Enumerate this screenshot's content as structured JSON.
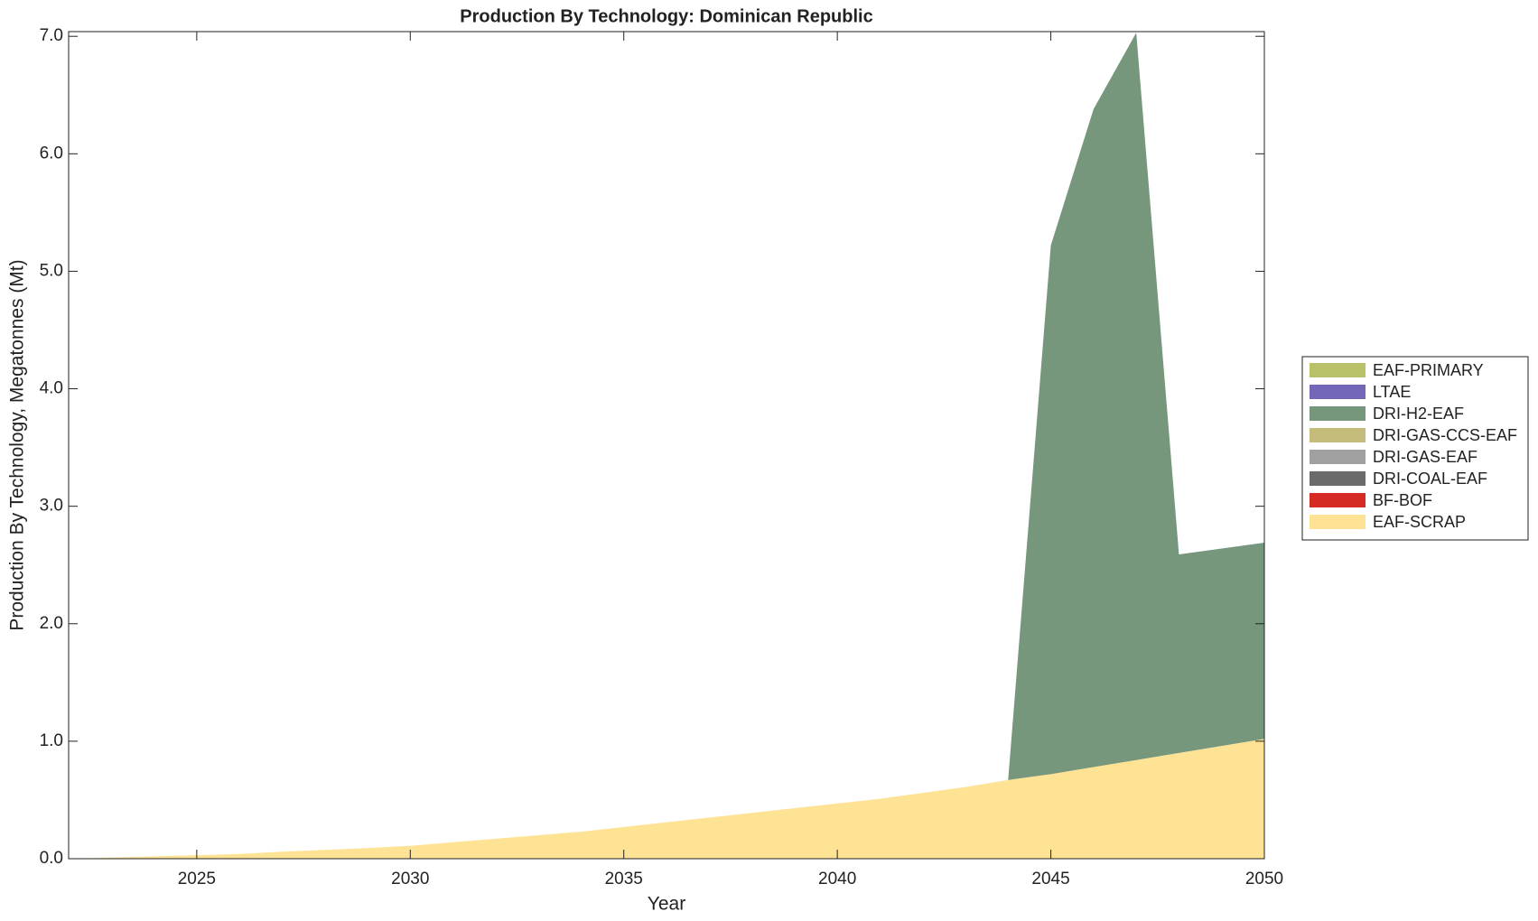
{
  "chart_data": {
    "type": "stacked-area",
    "title": "Production By Technology: Dominican Republic",
    "xlabel": "Year",
    "ylabel": "Production By Technology, Megatonnes (Mt)",
    "x": [
      2022,
      2023,
      2024,
      2025,
      2026,
      2027,
      2028,
      2029,
      2030,
      2031,
      2032,
      2033,
      2034,
      2035,
      2036,
      2037,
      2038,
      2039,
      2040,
      2041,
      2042,
      2043,
      2044,
      2045,
      2046,
      2047,
      2048,
      2049,
      2050
    ],
    "xlim": [
      2022,
      2050
    ],
    "xticks": [
      2025,
      2030,
      2035,
      2040,
      2045,
      2050
    ],
    "ylim": [
      0,
      7.04
    ],
    "yticks": [
      {
        "value": 0,
        "label": "0.0"
      },
      {
        "value": 1,
        "label": "1.0"
      },
      {
        "value": 2,
        "label": "2.0"
      },
      {
        "value": 3,
        "label": "3.0"
      },
      {
        "value": 4,
        "label": "4.0"
      },
      {
        "value": 5,
        "label": "5.0"
      },
      {
        "value": 6,
        "label": "6.0"
      },
      {
        "value": 7,
        "label": "7.0"
      }
    ],
    "legend_position": "right",
    "series": [
      {
        "name": "EAF-SCRAP",
        "color": "#fee395",
        "values": [
          0,
          0.01,
          0.02,
          0.03,
          0.04,
          0.06,
          0.075,
          0.09,
          0.11,
          0.14,
          0.17,
          0.2,
          0.23,
          0.27,
          0.31,
          0.35,
          0.39,
          0.43,
          0.47,
          0.51,
          0.56,
          0.61,
          0.67,
          0.72,
          0.78,
          0.84,
          0.9,
          0.96,
          1.02
        ]
      },
      {
        "name": "BF-BOF",
        "color": "#d62b24",
        "values": [
          0,
          0,
          0,
          0,
          0,
          0,
          0,
          0,
          0,
          0,
          0,
          0,
          0,
          0,
          0,
          0,
          0,
          0,
          0,
          0,
          0,
          0,
          0,
          0,
          0,
          0,
          0,
          0,
          0
        ]
      },
      {
        "name": "DRI-COAL-EAF",
        "color": "#6b6b6b",
        "values": [
          0,
          0,
          0,
          0,
          0,
          0,
          0,
          0,
          0,
          0,
          0,
          0,
          0,
          0,
          0,
          0,
          0,
          0,
          0,
          0,
          0,
          0,
          0,
          0,
          0,
          0,
          0,
          0,
          0
        ]
      },
      {
        "name": "DRI-GAS-EAF",
        "color": "#a0a0a0",
        "values": [
          0,
          0,
          0,
          0,
          0,
          0,
          0,
          0,
          0,
          0,
          0,
          0,
          0,
          0,
          0,
          0,
          0,
          0,
          0,
          0,
          0,
          0,
          0,
          0,
          0,
          0,
          0,
          0,
          0
        ]
      },
      {
        "name": "DRI-GAS-CCS-EAF",
        "color": "#c5bc7c",
        "values": [
          0,
          0,
          0,
          0,
          0,
          0,
          0,
          0,
          0,
          0,
          0,
          0,
          0,
          0,
          0,
          0,
          0,
          0,
          0,
          0,
          0,
          0,
          0,
          0,
          0,
          0,
          0,
          0,
          0
        ]
      },
      {
        "name": "DRI-H2-EAF",
        "color": "#76977c",
        "values": [
          0,
          0,
          0,
          0,
          0,
          0,
          0,
          0,
          0,
          0,
          0,
          0,
          0,
          0,
          0,
          0,
          0,
          0,
          0,
          0,
          0,
          0,
          0,
          4.5,
          5.6,
          6.19,
          1.69,
          1.68,
          1.67
        ]
      },
      {
        "name": "LTAE",
        "color": "#7367b8",
        "values": [
          0,
          0,
          0,
          0,
          0,
          0,
          0,
          0,
          0,
          0,
          0,
          0,
          0,
          0,
          0,
          0,
          0,
          0,
          0,
          0,
          0,
          0,
          0,
          0,
          0,
          0,
          0,
          0,
          0
        ]
      },
      {
        "name": "EAF-PRIMARY",
        "color": "#b8c167",
        "values": [
          0,
          0,
          0,
          0,
          0,
          0,
          0,
          0,
          0,
          0,
          0,
          0,
          0,
          0,
          0,
          0,
          0,
          0,
          0,
          0,
          0,
          0,
          0,
          0,
          0,
          0,
          0,
          0,
          0
        ]
      }
    ]
  }
}
